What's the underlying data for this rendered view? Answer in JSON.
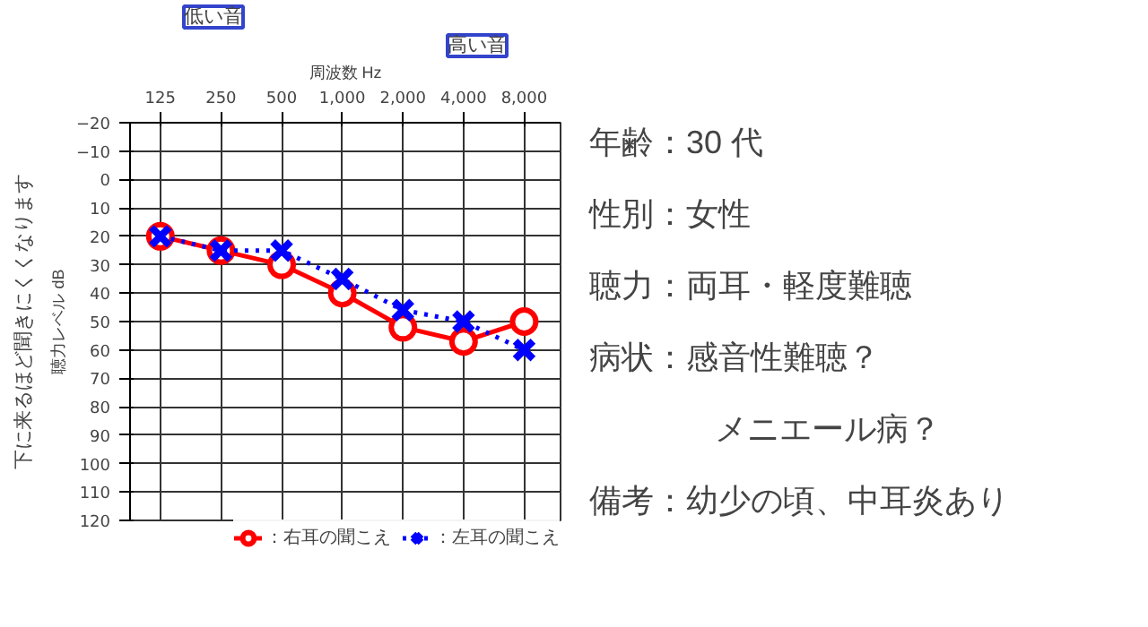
{
  "chart_data": [
    {
      "type": "line",
      "xlabel": "周波数 Hz",
      "ylabel": "聴力レベル dB",
      "categories": [
        "125",
        "250",
        "500",
        "1,000",
        "2,000",
        "4,000",
        "8,000"
      ],
      "series": [
        {
          "name": "：右耳の聞こえ",
          "color": "#ff0000",
          "values": [
            20,
            25,
            30,
            40,
            52,
            57,
            50
          ],
          "marker": "circle",
          "line_style": "solid"
        },
        {
          "name": "：左耳の聞こえ",
          "color": "#0000ff",
          "values": [
            20,
            25,
            25,
            35,
            46,
            50,
            60
          ],
          "marker": "cross",
          "line_style": "dotted"
        }
      ],
      "ylim": [
        120,
        -20
      ],
      "yticks": [
        {
          "value": -20,
          "label": "−20"
        },
        {
          "value": -10,
          "label": "−10"
        },
        0,
        10,
        20,
        30,
        40,
        50,
        60,
        70,
        80,
        90,
        100,
        110,
        120
      ],
      "grid": true,
      "legend": "bottom",
      "annotations": [
        "低い音",
        "高い音",
        "下に来るほど聞きにくくなります"
      ]
    },
    {
      "type": "other",
      "annotations": [
        "年齢：30 代",
        "性別：女性",
        "聴力：両耳・軽度難聴",
        "病状：感音性難聴？",
        "メニエール病？",
        "備考：幼少の頃、中耳炎あり"
      ]
    }
  ]
}
